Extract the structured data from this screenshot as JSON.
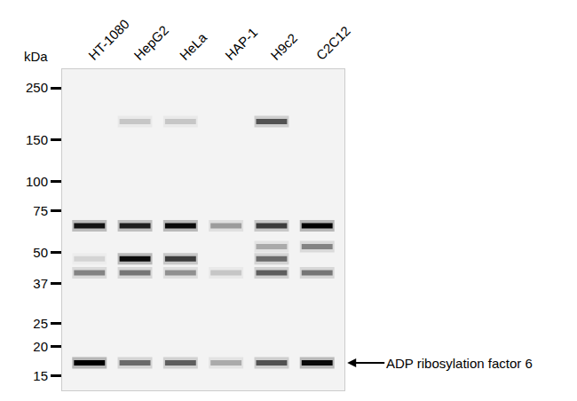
{
  "chart_data": {
    "type": "western_blot",
    "categories": [
      "HT-1080",
      "HepG2",
      "HeLa",
      "HAP-1",
      "H9c2",
      "C2C12"
    ],
    "y_label": "kDa",
    "log": "y",
    "ylim": [
      13,
      300
    ],
    "yticks": [
      250,
      150,
      100,
      75,
      50,
      37,
      25,
      20,
      15
    ],
    "bands": [
      {
        "kDa": 180,
        "values": [
          null,
          0.15,
          0.15,
          null,
          0.6,
          null
        ]
      },
      {
        "kDa": 65,
        "values": [
          0.9,
          0.85,
          0.95,
          0.3,
          0.7,
          1.0
        ]
      },
      {
        "kDa": 53,
        "values": [
          null,
          null,
          null,
          null,
          0.25,
          0.4
        ]
      },
      {
        "kDa": 47,
        "values": [
          0.1,
          0.95,
          0.7,
          null,
          0.5,
          null
        ]
      },
      {
        "kDa": 41,
        "values": [
          0.4,
          0.45,
          0.35,
          0.15,
          0.55,
          0.45
        ]
      },
      {
        "kDa": 17,
        "values": [
          1.0,
          0.5,
          0.55,
          0.25,
          0.6,
          0.95
        ]
      }
    ],
    "annotations": [
      {
        "text": "ADP ribosylation factor 6",
        "kDa": 17
      }
    ]
  }
}
